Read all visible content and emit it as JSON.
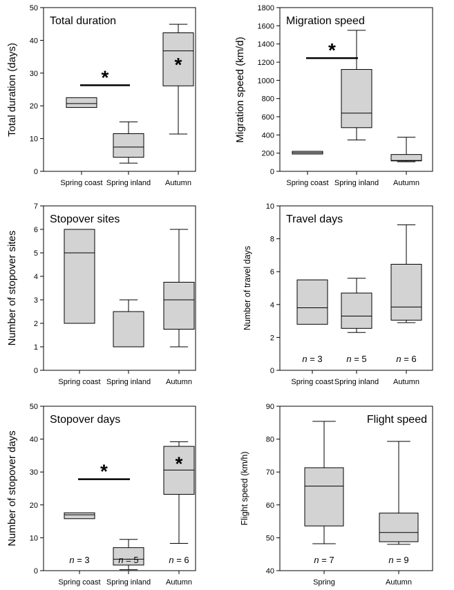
{
  "chart_data": [
    {
      "id": "total-duration",
      "type": "box",
      "title": "Total duration",
      "ylabel": "Total duration (days)",
      "ylim": [
        0,
        50
      ],
      "yticks": [
        0,
        10,
        20,
        30,
        40,
        50
      ],
      "categories": [
        "Spring coast",
        "Spring inland",
        "Autumn"
      ],
      "boxes": [
        {
          "min": 19.5,
          "q1": 19.5,
          "median": 20.7,
          "q3": 22.5,
          "max": 22.5
        },
        {
          "min": 2.5,
          "q1": 4.3,
          "median": 7.4,
          "q3": 11.5,
          "max": 15.1
        },
        {
          "min": 11.4,
          "q1": 26.1,
          "median": 36.8,
          "q3": 42.3,
          "max": 44.9
        }
      ],
      "sig_bar": {
        "from": 0,
        "to": 1,
        "y": 26.3,
        "label": "*"
      },
      "box_stars": [
        {
          "index": 2,
          "label": "*",
          "y": 33.5
        }
      ],
      "n_labels": []
    },
    {
      "id": "migration-speed",
      "type": "box",
      "title": "Migration speed",
      "ylabel": "Migration speed (km/d)",
      "ylim": [
        0,
        1800
      ],
      "yticks": [
        0,
        200,
        400,
        600,
        800,
        1000,
        1200,
        1400,
        1600,
        1800
      ],
      "categories": [
        "Spring coast",
        "Spring inland",
        "Autumn"
      ],
      "boxes": [
        {
          "min": 190,
          "q1": 190,
          "median": 205,
          "q3": 220,
          "max": 220
        },
        {
          "min": 345,
          "q1": 480,
          "median": 640,
          "q3": 1120,
          "max": 1550
        },
        {
          "min": 105,
          "q1": 115,
          "median": 120,
          "q3": 185,
          "max": 375
        }
      ],
      "sig_bar": {
        "from": 0,
        "to": 1,
        "y": 1245,
        "label": "*"
      },
      "box_stars": [],
      "n_labels": []
    },
    {
      "id": "stopover-sites",
      "type": "box",
      "title": "Stopover sites",
      "ylabel": "Number of stopover sites",
      "ylim": [
        0,
        7
      ],
      "yticks": [
        0,
        1,
        2,
        3,
        4,
        5,
        6,
        7
      ],
      "categories": [
        "Spring coast",
        "Spring inland",
        "Autumn"
      ],
      "boxes": [
        {
          "min": 2,
          "q1": 2,
          "median": 5,
          "q3": 6,
          "max": 6
        },
        {
          "min": 1,
          "q1": 1,
          "median": 1,
          "q3": 2.5,
          "max": 3
        },
        {
          "min": 1,
          "q1": 1.75,
          "median": 3,
          "q3": 3.75,
          "max": 6
        }
      ],
      "sig_bar": null,
      "box_stars": [],
      "n_labels": []
    },
    {
      "id": "travel-days",
      "type": "box",
      "title": "Travel days",
      "ylabel": "Number of travel days",
      "ylim": [
        0,
        10
      ],
      "yticks": [
        0,
        2,
        4,
        6,
        8,
        10
      ],
      "categories": [
        "Spring coast",
        "Spring inland",
        "Autumn"
      ],
      "boxes": [
        {
          "min": 2.8,
          "q1": 2.8,
          "median": 3.8,
          "q3": 5.5,
          "max": 5.5
        },
        {
          "min": 2.3,
          "q1": 2.55,
          "median": 3.3,
          "q3": 4.7,
          "max": 5.6
        },
        {
          "min": 2.9,
          "q1": 3.05,
          "median": 3.85,
          "q3": 6.45,
          "max": 8.85
        }
      ],
      "sig_bar": null,
      "box_stars": [],
      "n_labels": [
        "n = 3",
        "n = 5",
        "n = 6"
      ]
    },
    {
      "id": "stopover-days",
      "type": "box",
      "title": "Stopover days",
      "ylabel": "Number of stopover days",
      "ylim": [
        0,
        50
      ],
      "yticks": [
        0,
        10,
        20,
        30,
        40,
        50
      ],
      "categories": [
        "Spring coast",
        "Spring inland",
        "Autumn"
      ],
      "boxes": [
        {
          "min": 15.8,
          "q1": 15.8,
          "median": 17.0,
          "q3": 17.6,
          "max": 17.6
        },
        {
          "min": 0.3,
          "q1": 1.7,
          "median": 3.5,
          "q3": 7.0,
          "max": 9.5
        },
        {
          "min": 8.3,
          "q1": 23.2,
          "median": 30.6,
          "q3": 37.8,
          "max": 39.2
        }
      ],
      "sig_bar": {
        "from": 0,
        "to": 1,
        "y": 27.8,
        "label": "*"
      },
      "box_stars": [
        {
          "index": 2,
          "label": "*",
          "y": 33.5
        }
      ],
      "n_labels": [
        "n = 3",
        "n = 5",
        "n = 6"
      ]
    },
    {
      "id": "flight-speed",
      "type": "box",
      "title": "Flight speed",
      "ylabel": "Flight speed (km/h)",
      "ylim": [
        40,
        90
      ],
      "yticks": [
        40,
        50,
        60,
        70,
        80,
        90
      ],
      "categories": [
        "Spring",
        "Autumn"
      ],
      "boxes": [
        {
          "min": 48.2,
          "q1": 53.6,
          "median": 65.7,
          "q3": 71.3,
          "max": 85.4
        },
        {
          "min": 48.0,
          "q1": 48.8,
          "median": 51.6,
          "q3": 57.5,
          "max": 79.3
        }
      ],
      "sig_bar": null,
      "box_stars": [],
      "n_labels": [
        "n = 7",
        "n = 9"
      ]
    }
  ]
}
